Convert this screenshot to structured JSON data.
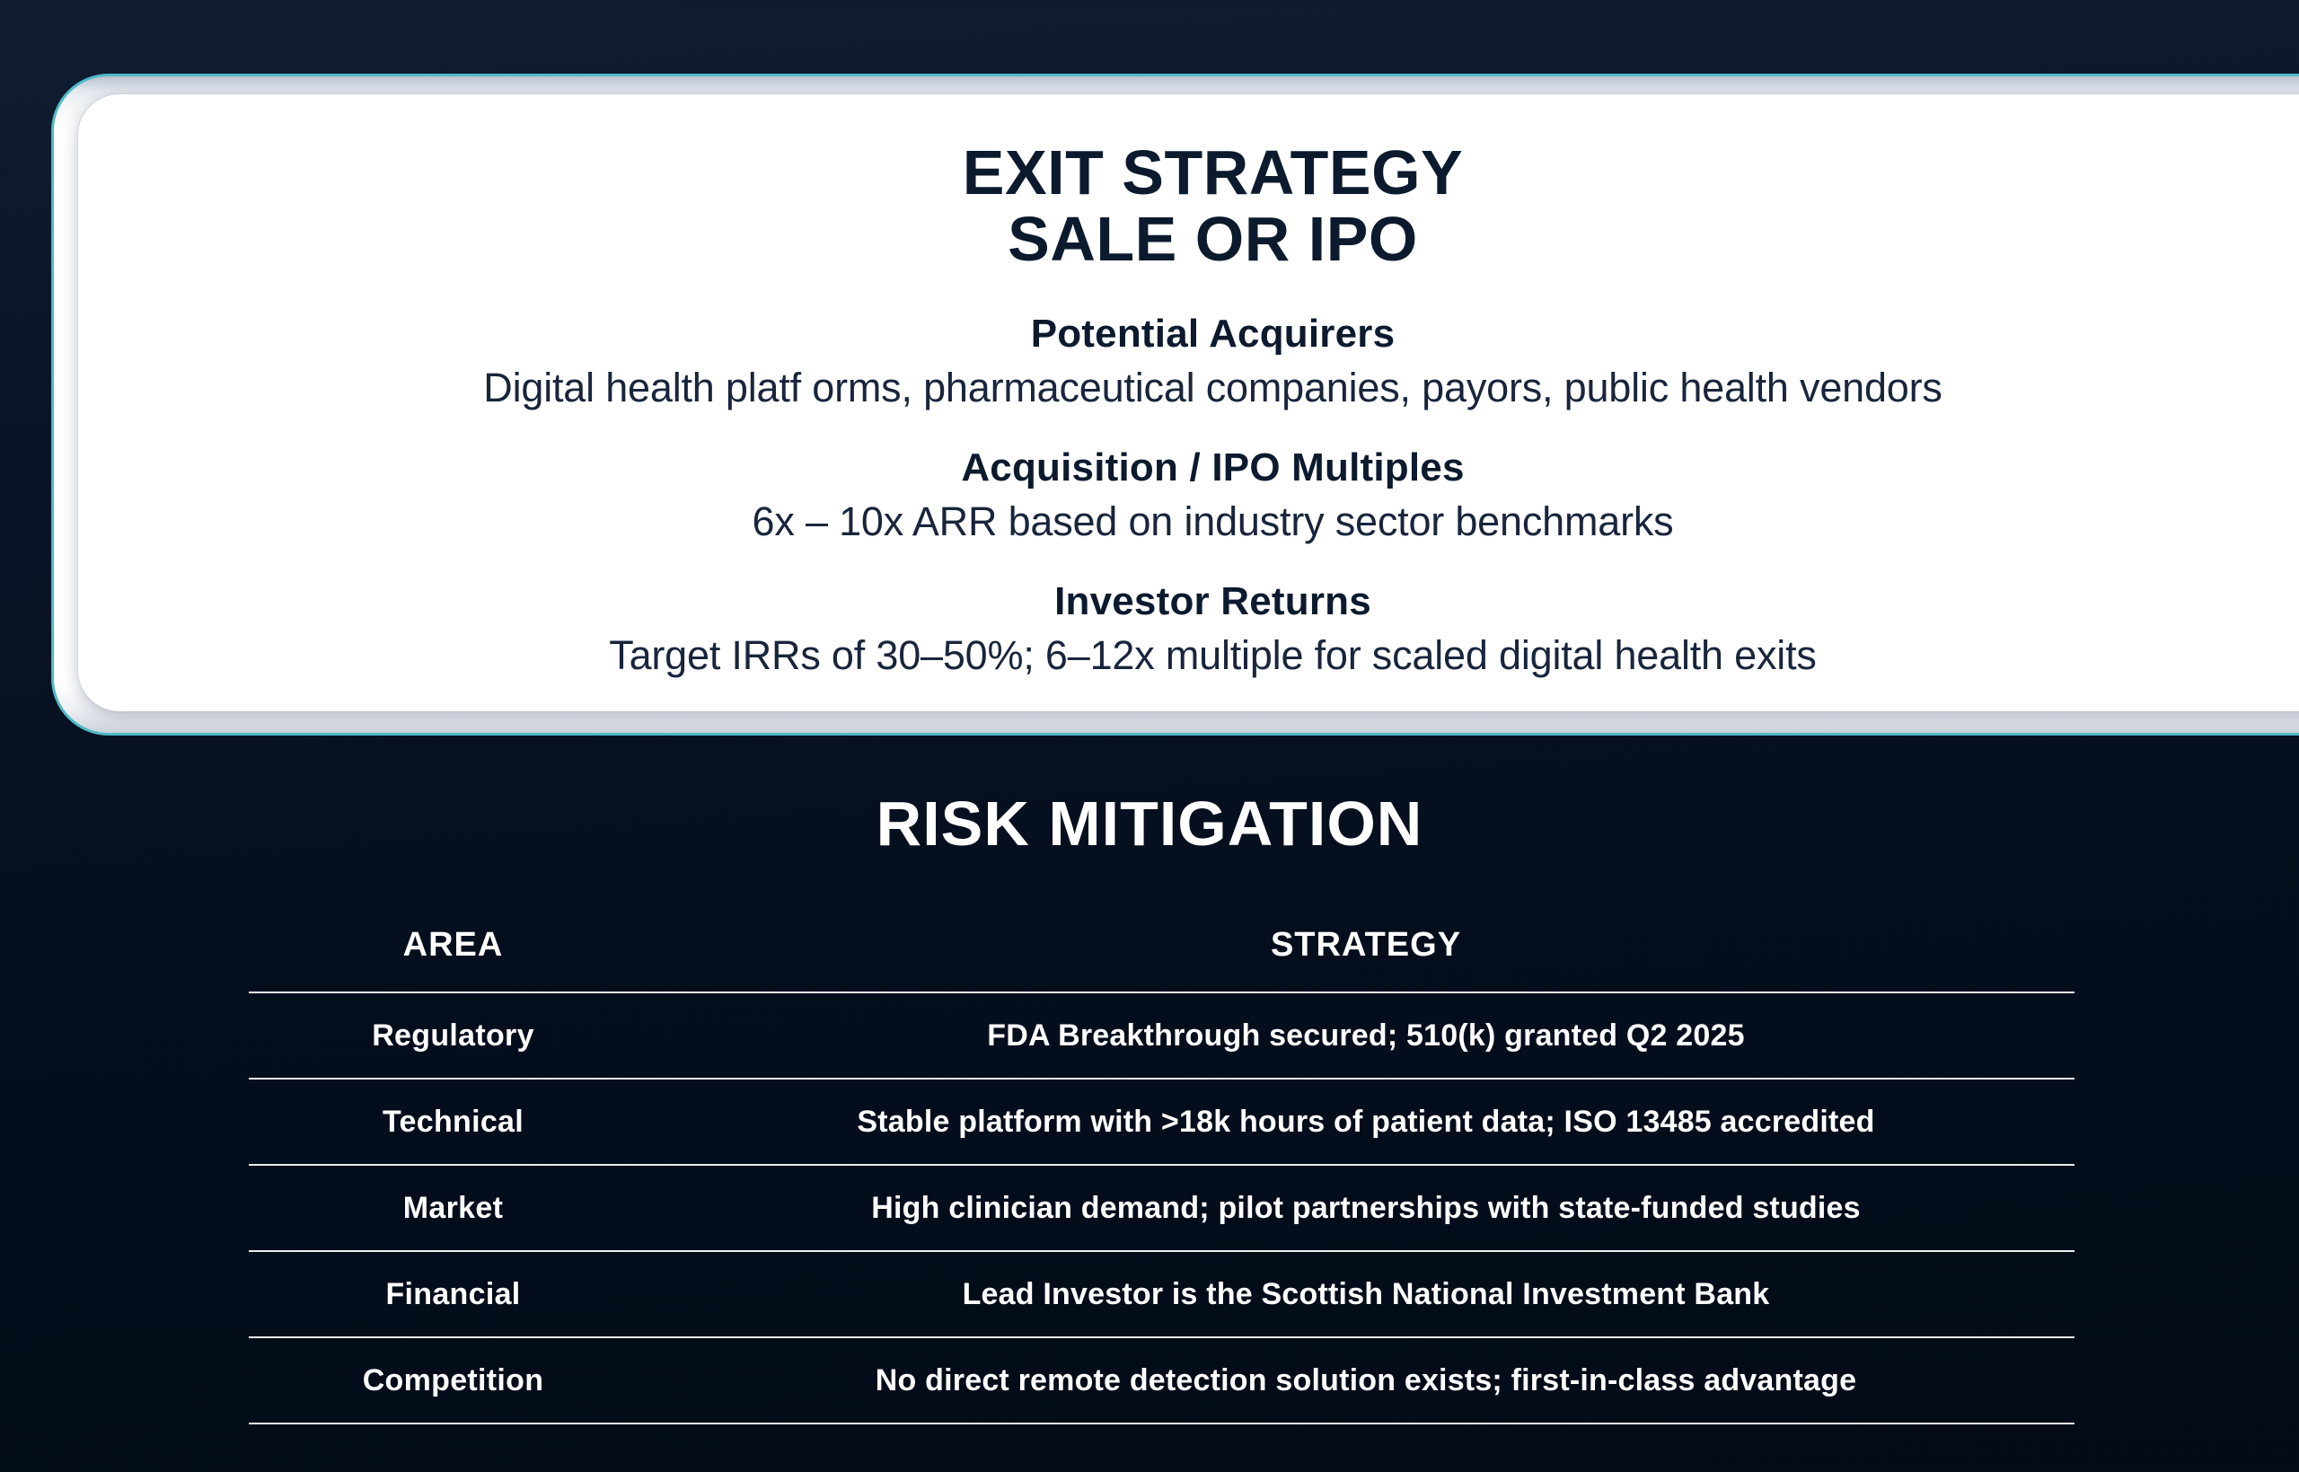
{
  "colors": {
    "accent_teal": "#4fbac7",
    "background_navy": "#081221",
    "card_white": "#ffffff",
    "heading_navy": "#0c1a2e",
    "table_text_white": "#ffffff"
  },
  "exit_card": {
    "title_line1": "EXIT STRATEGY",
    "title_line2": "SALE OR IPO",
    "sections": [
      {
        "heading": "Potential Acquirers",
        "body": "Digital health platf orms, pharmaceutical companies, payors, public health vendors"
      },
      {
        "heading": "Acquisition / IPO Multiples",
        "body": "6x – 10x ARR based on industry sector benchmarks"
      },
      {
        "heading": "Investor Returns",
        "body": "Target IRRs of 30–50%; 6–12x multiple for scaled digital health exits"
      }
    ]
  },
  "risk_mitigation": {
    "title": "RISK MITIGATION",
    "table": {
      "headers": [
        "AREA",
        "STRATEGY"
      ],
      "rows": [
        {
          "area": "Regulatory",
          "strategy": "FDA Breakthrough secured; 510(k) granted Q2 2025"
        },
        {
          "area": "Technical",
          "strategy": "Stable platform with >18k hours of patient data; ISO 13485 accredited"
        },
        {
          "area": "Market",
          "strategy": "High clinician demand; pilot partnerships with state-funded studies"
        },
        {
          "area": "Financial",
          "strategy": "Lead Investor is the Scottish National Investment Bank"
        },
        {
          "area": "Competition",
          "strategy": "No direct remote detection solution exists; first-in-class advantage"
        }
      ]
    }
  }
}
